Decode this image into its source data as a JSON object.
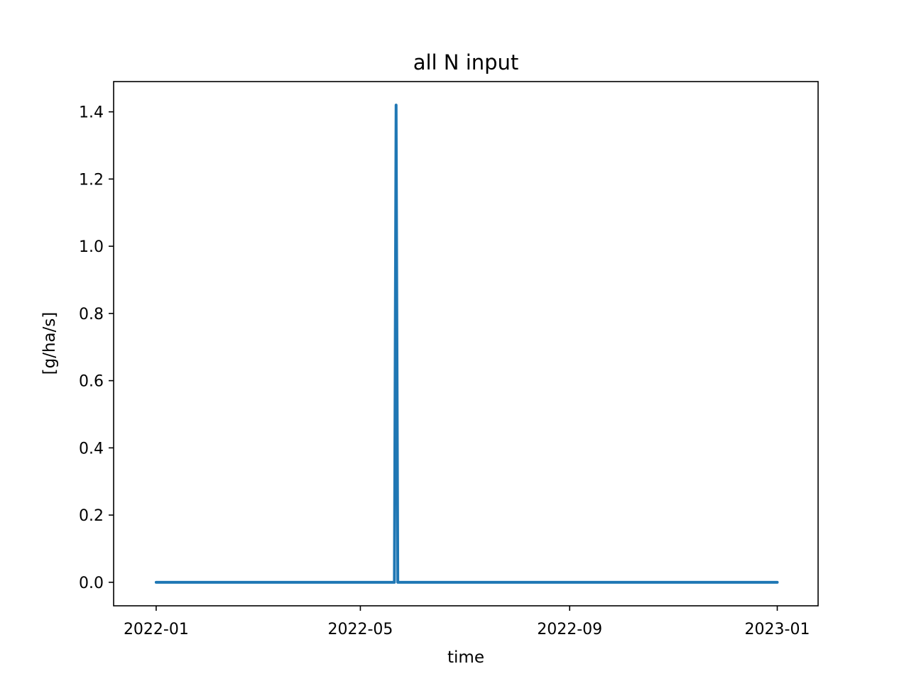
{
  "chart_data": {
    "type": "line",
    "title": "all N input",
    "xlabel": "time",
    "ylabel": "[g/ha/s]",
    "x_ticks": [
      "2022-01",
      "2022-05",
      "2022-09",
      "2023-01"
    ],
    "y_ticks": [
      "0.0",
      "0.2",
      "0.4",
      "0.6",
      "0.8",
      "1.0",
      "1.2",
      "1.4"
    ],
    "xlim": [
      "2021-12-07",
      "2023-01-25"
    ],
    "ylim": [
      -0.07,
      1.49
    ],
    "grid": false,
    "line_color": "#1f77b4",
    "series": [
      {
        "x": [
          "2022-01-01",
          "2022-05-21",
          "2022-05-22",
          "2022-05-23",
          "2023-01-01"
        ],
        "values": [
          0.0,
          0.0,
          1.42,
          0.0,
          0.0
        ]
      }
    ]
  }
}
